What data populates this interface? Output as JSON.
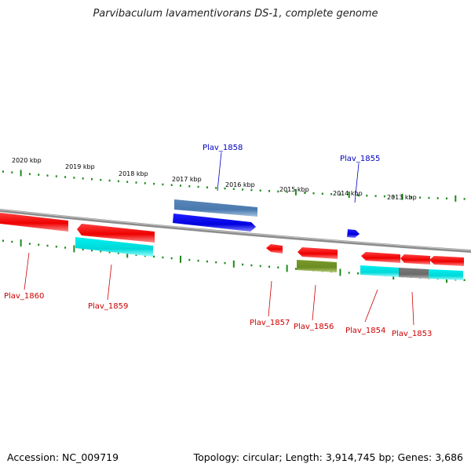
{
  "title": "Parvibaculum lavamentivorans DS-1, complete genome",
  "footer": {
    "accession": "Accession: NC_009719",
    "topology": "Topology: circular; Length: 3,914,745 bp; Genes: 3,686"
  },
  "colors": {
    "forward_label": "#0000c0",
    "reverse_label": "#cc0000",
    "tick": "#1a8a1a",
    "backbone": "#808080"
  },
  "kbp_labels": [
    "2020 kbp",
    "2019 kbp",
    "2018 kbp",
    "2017 kbp",
    "2016 kbp",
    "2015 kbp",
    "2014 kbp",
    "2013 kbp"
  ],
  "genes": [
    {
      "id": "Plav_1858",
      "label": "Plav_1858",
      "strand": "forward"
    },
    {
      "id": "Plav_1855",
      "label": "Plav_1855",
      "strand": "forward"
    },
    {
      "id": "Plav_1860",
      "label": "Plav_1860",
      "strand": "reverse"
    },
    {
      "id": "Plav_1859",
      "label": "Plav_1859",
      "strand": "reverse"
    },
    {
      "id": "Plav_1857",
      "label": "Plav_1857",
      "strand": "reverse"
    },
    {
      "id": "Plav_1856",
      "label": "Plav_1856",
      "strand": "reverse"
    },
    {
      "id": "Plav_1854",
      "label": "Plav_1854",
      "strand": "reverse"
    },
    {
      "id": "Plav_1853",
      "label": "Plav_1853",
      "strand": "reverse"
    }
  ]
}
